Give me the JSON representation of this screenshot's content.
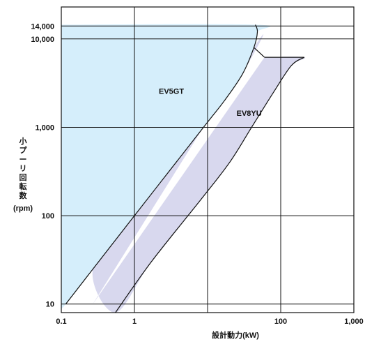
{
  "chart_data": {
    "type": "area",
    "title": "",
    "xlabel": "設計動力(kW)",
    "ylabel": [
      "小",
      "プ",
      "ー",
      "リ",
      "回",
      "転",
      "数"
    ],
    "ylabel_unit": "(rpm)",
    "x_scale": "log",
    "y_scale": "log",
    "xlim": [
      0.1,
      1000
    ],
    "ylim": [
      8,
      23000
    ],
    "x_ticks": [
      {
        "value": 0.1,
        "label": "0.1"
      },
      {
        "value": 1,
        "label": "1"
      },
      {
        "value": 10,
        "label": ""
      },
      {
        "value": 100,
        "label": "100"
      },
      {
        "value": 1000,
        "label": "1,000"
      }
    ],
    "y_ticks": [
      {
        "value": 10,
        "label": "10"
      },
      {
        "value": 100,
        "label": "100"
      },
      {
        "value": 1000,
        "label": "1,000"
      },
      {
        "value": 10000,
        "label": "10,000"
      },
      {
        "value": 14000,
        "label": "14,000"
      }
    ],
    "grid": true,
    "legend": "none",
    "colors": {
      "ev5gt_fill": "#d5eefb",
      "ev8yu_fill": "#d8d8ee",
      "outline": "#111111",
      "grid": "#111111"
    },
    "series": [
      {
        "name": "EV5GT",
        "boundary": [
          {
            "x": 0.1,
            "y": 14500
          },
          {
            "x": 45,
            "y": 14500
          },
          {
            "x": 48,
            "y": 12000
          },
          {
            "x": 43,
            "y": 8000
          },
          {
            "x": 30,
            "y": 4000
          },
          {
            "x": 17,
            "y": 2000
          },
          {
            "x": 8.8,
            "y": 1000
          },
          {
            "x": 1.0,
            "y": 100
          },
          {
            "x": 0.115,
            "y": 10
          },
          {
            "x": 0.1,
            "y": 10
          }
        ]
      },
      {
        "name": "EV8YU",
        "boundary": [
          {
            "x": 0.27,
            "y": 10
          },
          {
            "x": 43,
            "y": 8000
          },
          {
            "x": 30,
            "y": 4000
          },
          {
            "x": 17,
            "y": 2000
          },
          {
            "x": 8.8,
            "y": 1000
          },
          {
            "x": 1.0,
            "y": 100
          },
          {
            "x": 0.27,
            "y": 25
          },
          {
            "x": 0.55,
            "y": 8
          },
          {
            "x": 1.7,
            "y": 30
          },
          {
            "x": 8.0,
            "y": 150
          },
          {
            "x": 20,
            "y": 400
          },
          {
            "x": 40,
            "y": 1000
          },
          {
            "x": 80,
            "y": 2500
          },
          {
            "x": 140,
            "y": 5000
          },
          {
            "x": 210,
            "y": 6200
          },
          {
            "x": 60,
            "y": 6200
          }
        ]
      }
    ]
  }
}
